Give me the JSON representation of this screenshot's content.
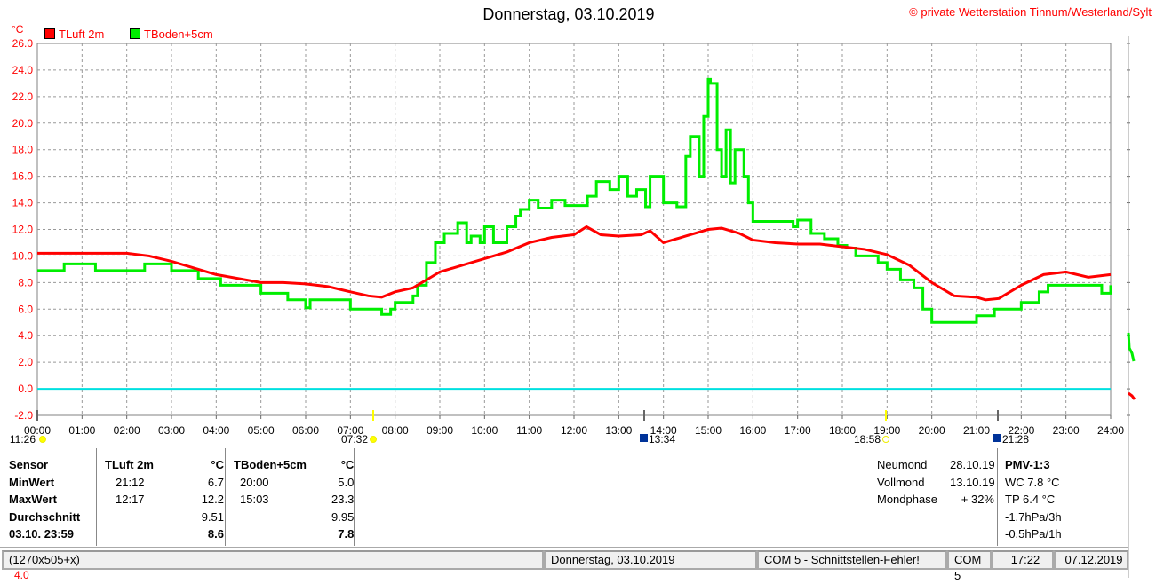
{
  "title": "Donnerstag, 03.10.2019",
  "copyright": "© private Wetterstation Tinnum/Westerland/Sylt",
  "colors": {
    "tluft": "#ff0000",
    "tboden": "#00ee00",
    "zero": "#00e0e0"
  },
  "chart_data": {
    "type": "line",
    "ylabel": "°C",
    "ylim": [
      -2,
      26
    ],
    "xlim": [
      0,
      24
    ],
    "grid": true,
    "yticks": [
      "-2.0",
      "0.0",
      "2.0",
      "4.0",
      "6.0",
      "8.0",
      "10.0",
      "12.0",
      "14.0",
      "16.0",
      "18.0",
      "20.0",
      "22.0",
      "24.0",
      "26.0"
    ],
    "xticks": [
      "00:00",
      "01:00",
      "02:00",
      "03:00",
      "04:00",
      "05:00",
      "06:00",
      "07:00",
      "08:00",
      "09:00",
      "10:00",
      "11:00",
      "12:00",
      "13:00",
      "14:00",
      "15:00",
      "16:00",
      "17:00",
      "18:00",
      "19:00",
      "20:00",
      "21:00",
      "22:00",
      "23:00",
      "24:00"
    ],
    "series": [
      {
        "name": "TLuft 2m",
        "x": [
          0,
          1,
          2,
          2.5,
          3,
          3.5,
          4,
          4.5,
          5,
          5.5,
          6,
          6.5,
          7,
          7.4,
          7.7,
          8,
          8.4,
          8.8,
          9,
          9.5,
          10,
          10.5,
          11,
          11.5,
          12,
          12.28,
          12.6,
          13,
          13.5,
          13.7,
          14,
          14.5,
          15,
          15.3,
          15.7,
          16,
          16.5,
          17,
          17.5,
          18,
          18.5,
          19,
          19.5,
          20,
          20.5,
          21,
          21.2,
          21.5,
          22,
          22.5,
          23,
          23.5,
          24
        ],
        "values": [
          10.2,
          10.2,
          10.2,
          10.0,
          9.6,
          9.1,
          8.6,
          8.3,
          8.0,
          8.0,
          7.9,
          7.7,
          7.3,
          7.0,
          6.9,
          7.3,
          7.6,
          8.4,
          8.8,
          9.3,
          9.8,
          10.3,
          11.0,
          11.4,
          11.6,
          12.2,
          11.6,
          11.5,
          11.6,
          11.9,
          11.0,
          11.5,
          12.0,
          12.1,
          11.7,
          11.2,
          11.0,
          10.9,
          10.9,
          10.7,
          10.5,
          10.1,
          9.3,
          8.0,
          7.0,
          6.9,
          6.7,
          6.8,
          7.8,
          8.6,
          8.8,
          8.4,
          8.6
        ]
      },
      {
        "name": "TBoden+5cm",
        "x": [
          0,
          0.5,
          0.6,
          1.2,
          1.3,
          2.3,
          2.4,
          2.9,
          3.0,
          3.5,
          3.6,
          4.0,
          4.1,
          4.9,
          5.0,
          5.5,
          5.6,
          5.9,
          6.0,
          6.1,
          6.3,
          7.0,
          7.1,
          7.6,
          7.7,
          7.9,
          8.0,
          8.4,
          8.5,
          8.7,
          8.9,
          9.1,
          9.4,
          9.6,
          9.7,
          9.9,
          10.0,
          10.2,
          10.5,
          10.7,
          10.8,
          11.0,
          11.2,
          11.5,
          11.8,
          12.0,
          12.3,
          12.5,
          12.8,
          13.0,
          13.2,
          13.4,
          13.6,
          13.7,
          14.0,
          14.3,
          14.5,
          14.6,
          14.8,
          14.9,
          15.0,
          15.05,
          15.2,
          15.3,
          15.4,
          15.5,
          15.6,
          15.8,
          15.9,
          16.0,
          16.5,
          16.9,
          17.0,
          17.3,
          17.6,
          17.9,
          18.1,
          18.3,
          18.6,
          18.8,
          19.0,
          19.3,
          19.6,
          19.8,
          20.0,
          20.6,
          21.0,
          21.1,
          21.4,
          21.8,
          22.0,
          22.4,
          22.6,
          23.0,
          23.8,
          24
        ],
        "values": [
          8.9,
          8.9,
          9.4,
          9.4,
          8.9,
          8.9,
          9.4,
          9.4,
          8.9,
          8.9,
          8.3,
          8.3,
          7.8,
          7.8,
          7.2,
          7.2,
          6.7,
          6.7,
          6.1,
          6.7,
          6.7,
          6.0,
          6.0,
          6.0,
          5.6,
          6.0,
          6.5,
          7.0,
          7.8,
          9.5,
          11.0,
          11.7,
          12.5,
          11.0,
          11.5,
          11.0,
          12.2,
          11.0,
          12.2,
          13.0,
          13.5,
          14.2,
          13.6,
          14.2,
          13.8,
          13.8,
          14.5,
          15.6,
          15.0,
          16.0,
          14.5,
          15.0,
          13.7,
          16.0,
          14.0,
          13.7,
          17.5,
          19.0,
          16.0,
          20.5,
          23.3,
          23.0,
          18.0,
          16.0,
          19.5,
          15.5,
          18.0,
          16.0,
          14.0,
          12.6,
          12.6,
          12.2,
          12.7,
          11.7,
          11.3,
          10.8,
          10.6,
          10.0,
          10.0,
          9.5,
          9.0,
          8.2,
          7.6,
          6.0,
          5.0,
          5.0,
          5.5,
          5.5,
          6.0,
          6.0,
          6.5,
          7.3,
          7.8,
          7.8,
          7.2,
          7.8
        ]
      }
    ],
    "markers": [
      {
        "label": "11:26",
        "icon": "moonset"
      },
      {
        "label": "07:32",
        "icon": "sunrise"
      },
      {
        "label": "13:34",
        "icon": "moonrise"
      },
      {
        "label": "18:58",
        "icon": "sunset"
      },
      {
        "label": "21:28",
        "icon": "moonset"
      }
    ]
  },
  "stats": {
    "headers": [
      "Sensor",
      "TLuft 2m",
      "°C",
      "TBoden+5cm",
      "°C"
    ],
    "rows": [
      {
        "label": "MinWert",
        "t1": "21:12",
        "v1": "6.7",
        "t2": "20:00",
        "v2": "5.0"
      },
      {
        "label": "MaxWert",
        "t1": "12:17",
        "v1": "12.2",
        "t2": "15:03",
        "v2": "23.3"
      },
      {
        "label": "Durchschnitt",
        "t1": "",
        "v1": "9.51",
        "t2": "",
        "v2": "9.95"
      },
      {
        "label": "03.10. 23:59",
        "t1": "",
        "v1": "8.6",
        "t2": "",
        "v2": "7.8"
      }
    ]
  },
  "moon": [
    {
      "label": "Neumond",
      "value": "28.10.19"
    },
    {
      "label": "Vollmond",
      "value": "13.10.19"
    },
    {
      "label": "Mondphase",
      "value": "+ 32%"
    }
  ],
  "extra": {
    "title": "PMV-1:3",
    "lines": [
      "WC 7.8 °C",
      "TP 6.4 °C",
      "-1.7hPa/3h",
      "-0.5hPa/1h"
    ]
  },
  "status": {
    "size": "(1270x505+x)",
    "date": "Donnerstag, 03.10.2019",
    "error": "COM 5 - Schnittstellen-Fehler!",
    "port": "COM 5",
    "time": "17:22",
    "today": "07.12.2019"
  },
  "cutoff_label": "4.0"
}
